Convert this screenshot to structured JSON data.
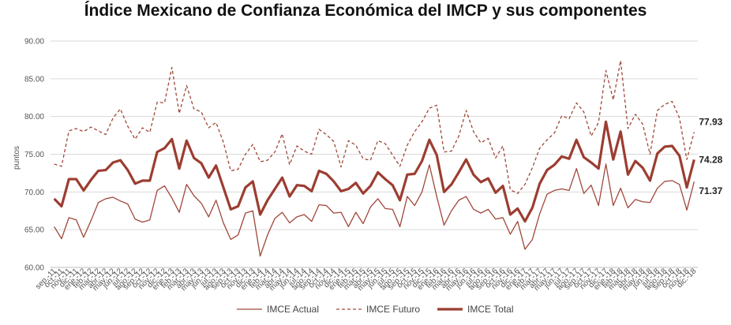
{
  "title": "Índice Mexicano de Confianza Económica del IMCP y sus componentes",
  "chart_data": {
    "type": "line",
    "title": "Índice Mexicano de Confianza Económica del IMCP y sus componentes",
    "ylabel": "puntos",
    "xlabel": "",
    "ylim": [
      60,
      90
    ],
    "yticks": [
      "60.00",
      "65.00",
      "70.00",
      "75.00",
      "80.00",
      "85.00",
      "90.00"
    ],
    "grid": true,
    "legend_position": "bottom",
    "categories": [
      "sep.-11",
      "oct.-11",
      "nov.-11",
      "dic.-11",
      "ene.-12",
      "feb.-12",
      "mar.-12",
      "abr.-12",
      "may.-12",
      "jun.-12",
      "jul.-12",
      "ago.-12",
      "sep.-12",
      "oct.-12",
      "nov.-12",
      "dic.-12",
      "ene.-13",
      "feb.-13",
      "mar.-13",
      "abr.-13",
      "may.-13",
      "jun.-13",
      "jul.-13",
      "ago.-13",
      "sep.-13",
      "oct.-13",
      "nov.-13",
      "dic.-13",
      "ene.-14",
      "feb.-14",
      "mar.-14",
      "abr.-14",
      "may.-14",
      "jun.-14",
      "jul.-14",
      "ago.-14",
      "sep.-14",
      "oct.-14",
      "nov.-14",
      "dic.-14",
      "ene.-15",
      "feb.-15",
      "mar.-15",
      "abr.-15",
      "may.-15",
      "jun.-15",
      "jul.-15",
      "ago.-15",
      "sep.-15",
      "oct.-15",
      "nov.-15",
      "dic.-15",
      "ene.-16",
      "feb.-16",
      "mar.-16",
      "abr.-16",
      "may.-16",
      "jun.-16",
      "jul.-16",
      "ago.-16",
      "sep.-16",
      "oct.-16",
      "nov.-16",
      "dic.-16",
      "ene.-17",
      "feb.-17",
      "mar.-17",
      "abr.-17",
      "may.-17",
      "jun.-17",
      "jul.-17",
      "ago.-17",
      "sep.-17",
      "oct.-17",
      "nov.-17",
      "dic.-17",
      "ene.-18",
      "feb.-18",
      "mar.-18",
      "abr.-18",
      "may.-18",
      "jun.-18",
      "jul.-18",
      "ago.-18",
      "sep.-18",
      "oct.-18",
      "nov.-18",
      "dic.-18"
    ],
    "series": [
      {
        "name": "IMCE Actual",
        "color": "#a0473a",
        "style": "thin",
        "values": [
          65.4,
          63.8,
          66.6,
          66.3,
          64.0,
          66.2,
          68.6,
          69.1,
          69.3,
          68.8,
          68.4,
          66.4,
          66.0,
          66.3,
          70.2,
          70.8,
          69.2,
          67.3,
          71.0,
          69.5,
          68.5,
          66.7,
          68.9,
          65.9,
          63.7,
          64.3,
          67.2,
          67.5,
          61.5,
          64.3,
          66.5,
          67.3,
          65.9,
          66.7,
          67.0,
          66.1,
          68.3,
          68.2,
          67.2,
          67.3,
          65.4,
          67.3,
          65.8,
          68.0,
          69.1,
          67.8,
          67.7,
          65.4,
          69.4,
          68.2,
          70.0,
          73.6,
          69.4,
          65.6,
          67.5,
          68.9,
          69.4,
          67.7,
          67.2,
          67.7,
          66.4,
          66.6,
          64.4,
          66.1,
          62.4,
          63.7,
          67.1,
          69.7,
          70.2,
          70.4,
          70.2,
          73.1,
          69.8,
          70.9,
          68.2,
          73.7,
          68.2,
          70.5,
          67.9,
          69.0,
          68.7,
          68.6,
          70.5,
          71.4,
          71.5,
          71.0,
          67.6,
          71.37
        ]
      },
      {
        "name": "IMCE Futuro",
        "color": "#a0473a",
        "style": "dashed",
        "values": [
          73.7,
          73.4,
          78.1,
          78.4,
          78.0,
          78.6,
          78.1,
          77.6,
          79.8,
          81.0,
          78.7,
          77.0,
          78.5,
          77.9,
          81.9,
          81.8,
          86.5,
          80.4,
          84.1,
          81.0,
          80.6,
          78.5,
          79.2,
          76.6,
          72.8,
          73.0,
          75.0,
          76.3,
          74.0,
          74.2,
          75.3,
          77.7,
          73.6,
          76.1,
          75.4,
          75.0,
          78.3,
          77.6,
          76.7,
          73.3,
          76.8,
          76.2,
          74.4,
          74.2,
          76.8,
          76.4,
          74.9,
          73.4,
          76.2,
          78.0,
          79.3,
          81.1,
          81.5,
          75.3,
          75.4,
          77.4,
          80.8,
          78.0,
          76.5,
          77.1,
          74.5,
          76.1,
          70.3,
          69.8,
          71.0,
          73.2,
          75.8,
          76.9,
          77.8,
          80.1,
          79.7,
          81.8,
          80.6,
          77.4,
          79.2,
          86.1,
          82.2,
          87.4,
          78.4,
          80.3,
          79.0,
          75.0,
          80.8,
          81.6,
          82.0,
          79.8,
          74.3,
          77.93
        ]
      },
      {
        "name": "IMCE Total",
        "color": "#9c3d31",
        "style": "thick",
        "values": [
          69.1,
          68.1,
          71.7,
          71.7,
          70.2,
          71.6,
          72.8,
          72.9,
          73.9,
          74.2,
          72.9,
          71.1,
          71.5,
          71.5,
          75.3,
          75.8,
          77.0,
          73.1,
          76.8,
          74.5,
          73.8,
          71.9,
          73.5,
          70.6,
          67.7,
          68.1,
          70.6,
          71.4,
          67.0,
          68.9,
          70.4,
          71.9,
          69.4,
          70.9,
          70.8,
          70.1,
          72.8,
          72.4,
          71.4,
          70.1,
          70.4,
          71.2,
          69.8,
          70.8,
          72.6,
          71.7,
          70.9,
          68.9,
          72.3,
          72.4,
          74.1,
          76.9,
          74.9,
          70.0,
          71.0,
          72.6,
          74.3,
          72.3,
          71.3,
          71.8,
          69.9,
          70.8,
          67.0,
          67.8,
          66.1,
          67.9,
          71.1,
          72.9,
          73.6,
          74.7,
          74.4,
          76.9,
          74.6,
          73.9,
          73.1,
          79.3,
          74.3,
          78.0,
          72.3,
          74.1,
          73.2,
          71.5,
          75.1,
          76.0,
          76.1,
          74.8,
          70.6,
          74.28
        ]
      }
    ],
    "end_labels": [
      "77.93",
      "74.28",
      "71.37"
    ]
  },
  "legend": {
    "actual": "IMCE Actual",
    "futuro": "IMCE Futuro",
    "total": "IMCE Total"
  }
}
